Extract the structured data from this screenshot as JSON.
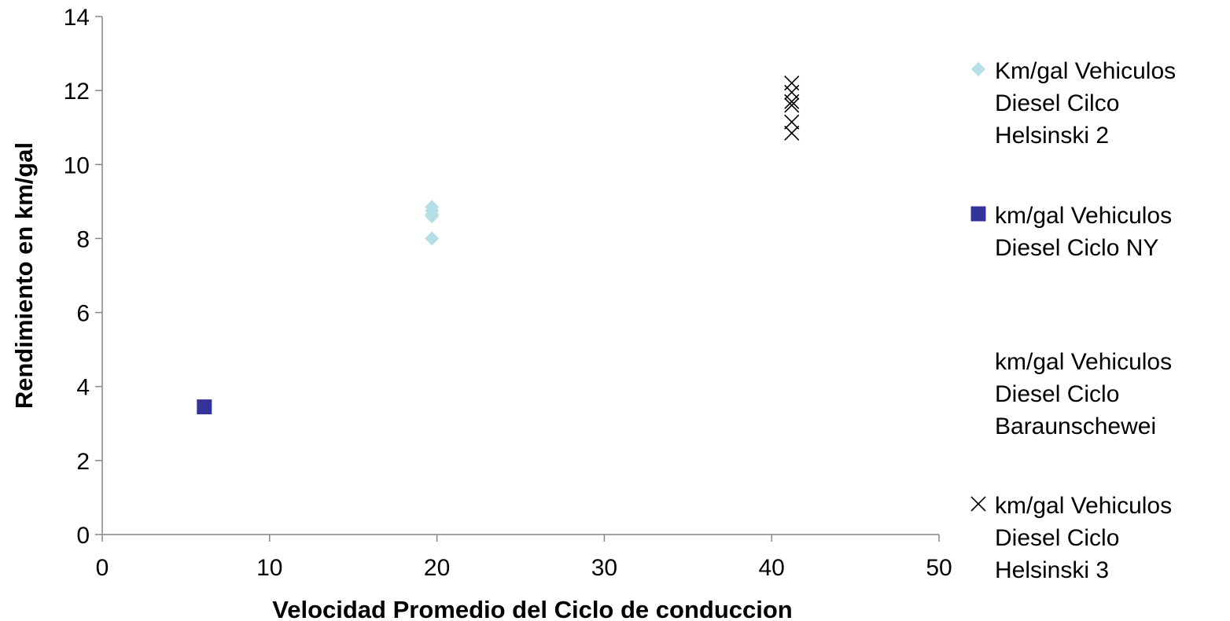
{
  "chart_data": {
    "type": "scatter",
    "title": "",
    "xlabel": "Velocidad Promedio del Ciclo de conduccion",
    "ylabel": "Rendimiento en km/gal",
    "xlim": [
      0,
      50
    ],
    "ylim": [
      0,
      14
    ],
    "x_ticks": [
      "0",
      "10",
      "20",
      "30",
      "40",
      "50"
    ],
    "y_ticks": [
      "0",
      "2",
      "4",
      "6",
      "8",
      "10",
      "12",
      "14"
    ],
    "grid": false,
    "legend_position": "right",
    "series": [
      {
        "name": [
          "Km/gal Vehiculos",
          "Diesel Cilco",
          "Helsinski 2"
        ],
        "marker": "diamond",
        "color": "#b4dfe4",
        "points": [
          [
            19.7,
            8.85
          ],
          [
            19.7,
            8.75
          ],
          [
            19.7,
            8.65
          ],
          [
            19.7,
            8.6
          ],
          [
            19.7,
            8.0
          ]
        ]
      },
      {
        "name": [
          "km/gal Vehiculos",
          "Diesel Ciclo NY"
        ],
        "marker": "square",
        "color": "#33339a",
        "points": [
          [
            6.1,
            3.45
          ]
        ]
      },
      {
        "name": [
          "km/gal Vehiculos",
          "Diesel Ciclo",
          "Baraunschewei"
        ],
        "marker": "none",
        "color": "#000000",
        "points": []
      },
      {
        "name": [
          "km/gal Vehiculos",
          "Diesel Ciclo",
          "Helsinski 3"
        ],
        "marker": "x",
        "color": "#000000",
        "points": [
          [
            41.2,
            12.2
          ],
          [
            41.2,
            11.95
          ],
          [
            41.2,
            11.7
          ],
          [
            41.2,
            11.6
          ],
          [
            41.2,
            11.15
          ],
          [
            41.2,
            10.85
          ]
        ]
      }
    ]
  }
}
